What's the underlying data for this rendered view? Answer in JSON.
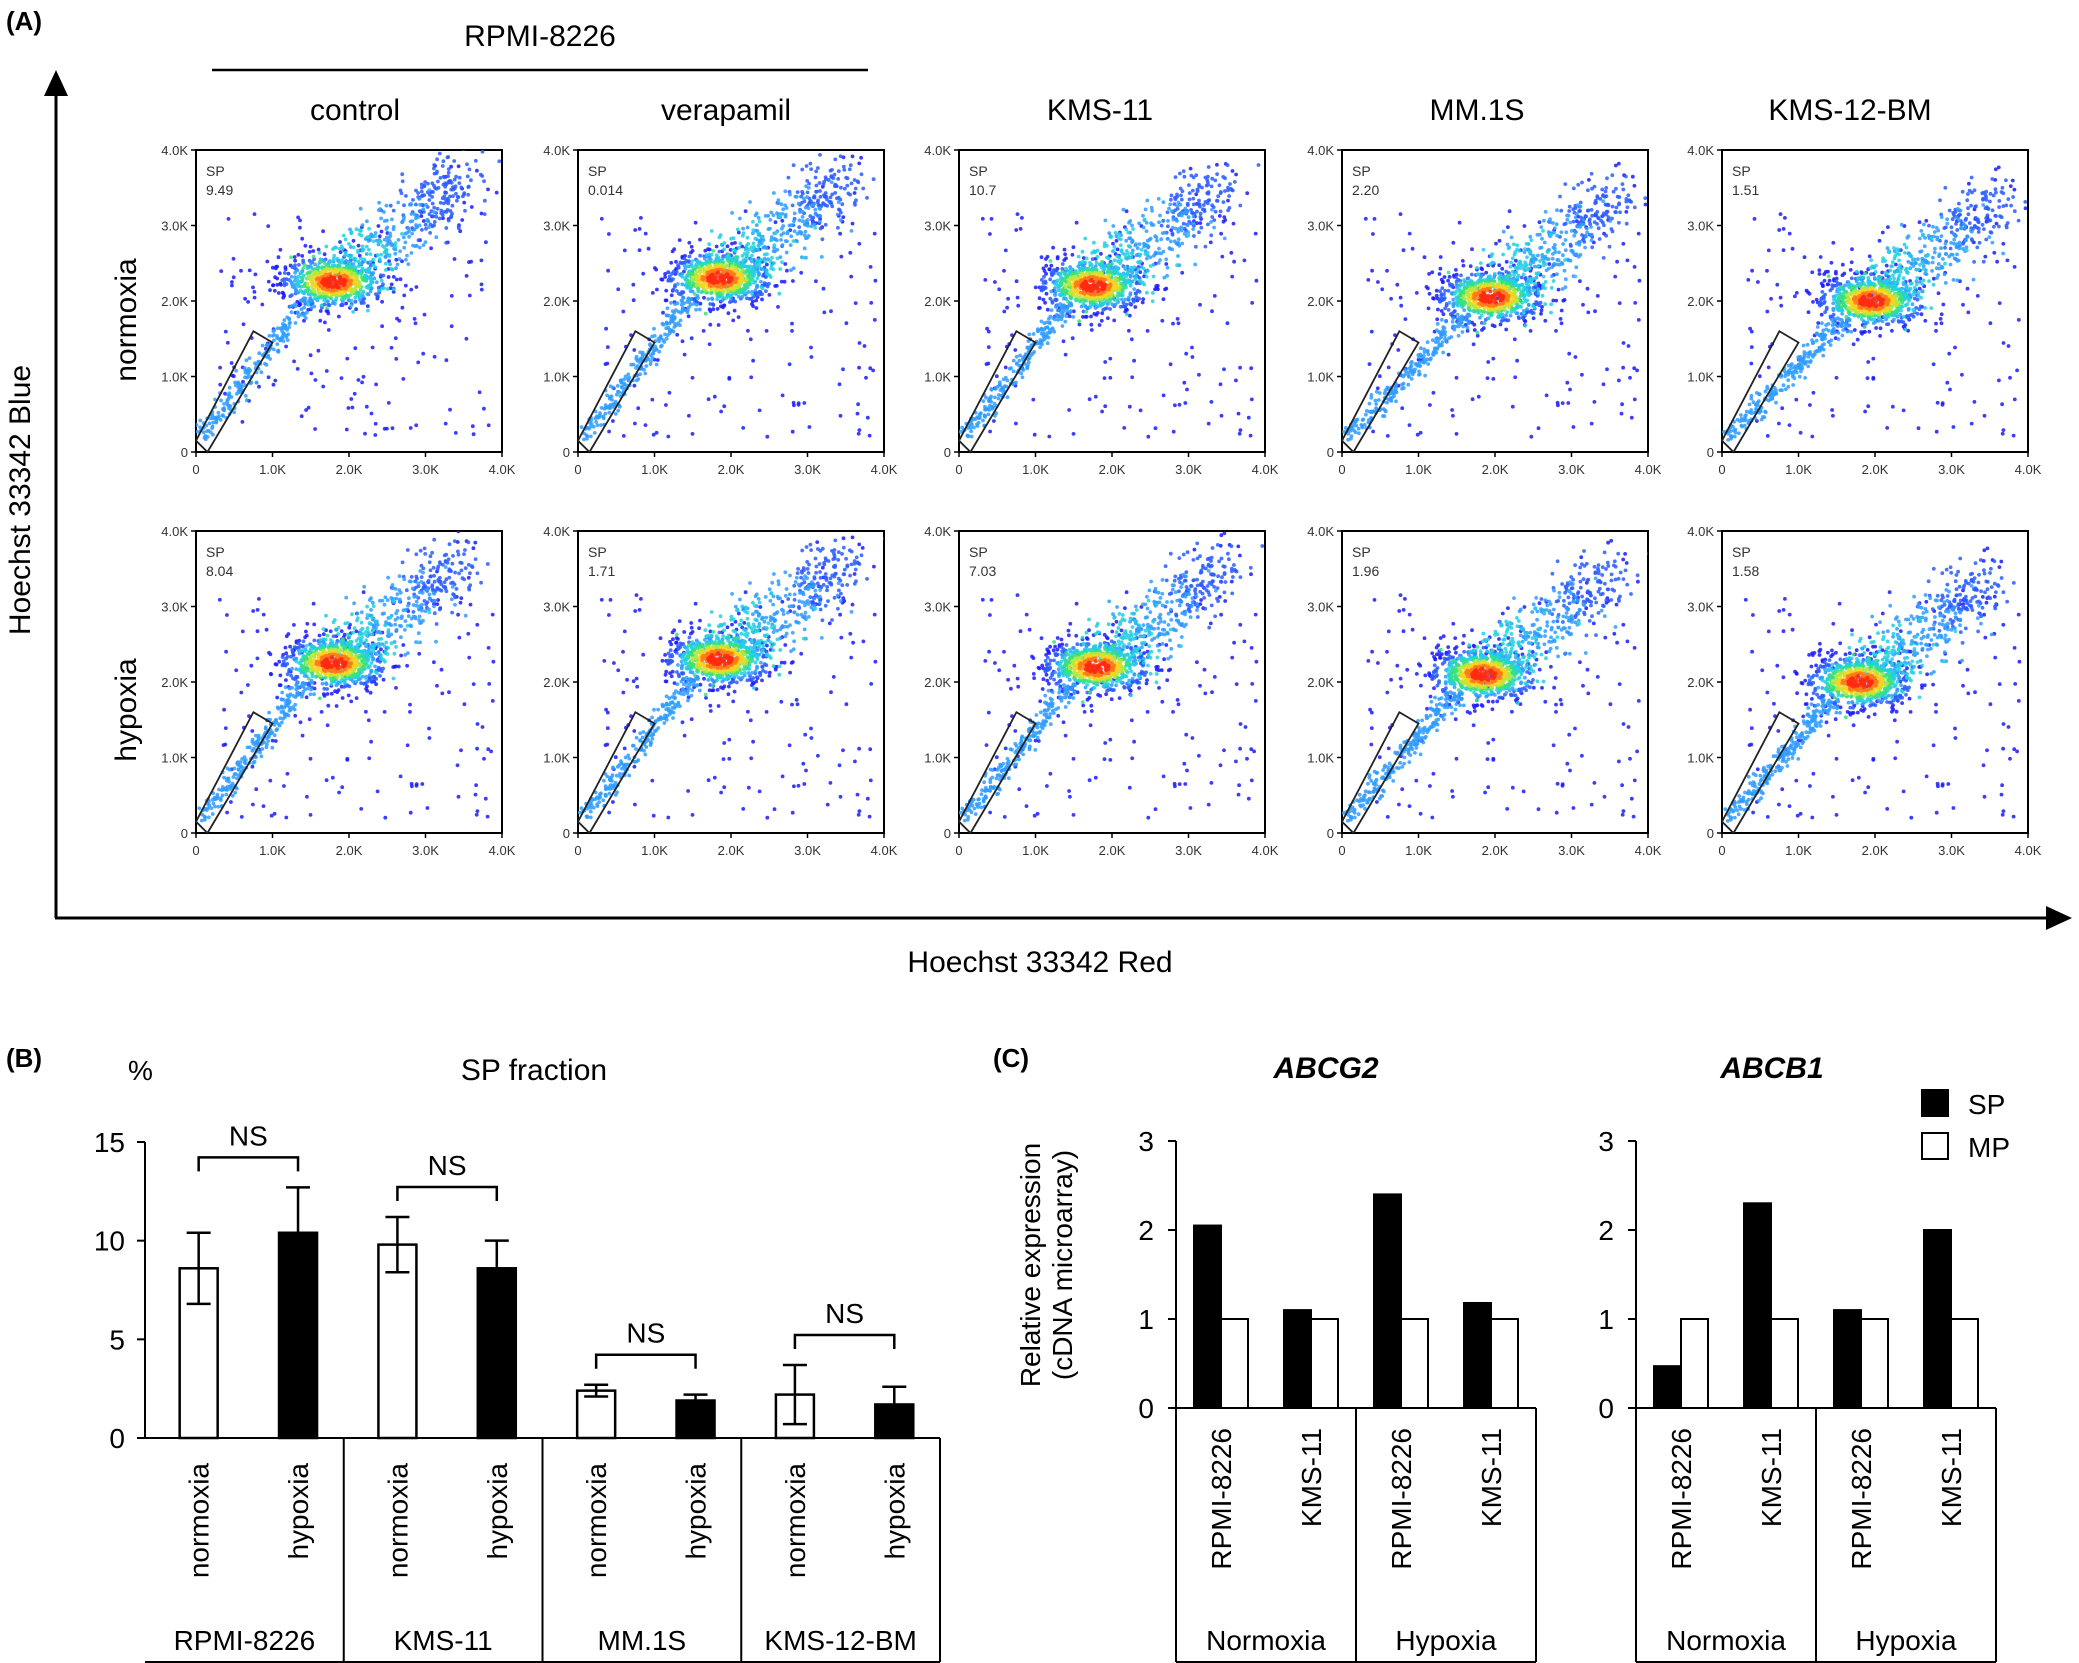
{
  "panel_a": {
    "tag": "(A)",
    "group_label": "RPMI-8226",
    "col_labels": [
      "control",
      "verapamil",
      "KMS-11",
      "MM.1S",
      "KMS-12-BM"
    ],
    "row_labels": [
      "normoxia",
      "hypoxia"
    ],
    "xlabel": "Hoechst 33342 Red",
    "ylabel": "Hoechst 33342 Blue",
    "tick_labels": [
      "0",
      "1.0K",
      "2.0K",
      "3.0K",
      "4.0K"
    ],
    "gate_label": "SP",
    "sp_values": [
      [
        "9.49",
        "0.014",
        "10.7",
        "2.20",
        "1.51"
      ],
      [
        "8.04",
        "1.71",
        "7.03",
        "1.96",
        "1.58"
      ]
    ]
  },
  "panel_b": {
    "tag": "(B)",
    "title": "SP fraction",
    "ylabel": "%",
    "yticks": [
      "0",
      "5",
      "10",
      "15"
    ],
    "ns_label": "NS",
    "group_labels": [
      "RPMI-8226",
      "KMS-11",
      "MM.1S",
      "KMS-12-BM"
    ],
    "condition_labels": [
      "normoxia",
      "hypoxia"
    ]
  },
  "panel_c": {
    "tag": "(C)",
    "ylabel_line1": "Relative expression",
    "ylabel_line2": "(cDNA microarray)",
    "yticks": [
      "0",
      "1",
      "2",
      "3"
    ],
    "titles": [
      "ABCG2",
      "ABCB1"
    ],
    "cell_labels": [
      "RPMI-8226",
      "KMS-11"
    ],
    "condition_labels": [
      "Normoxia",
      "Hypoxia"
    ],
    "legend": [
      "SP",
      "MP"
    ]
  },
  "chart_data": [
    {
      "type": "scatter",
      "title": "",
      "xlabel": "Hoechst 33342 Red",
      "ylabel": "Hoechst 33342 Blue",
      "xlim": [
        0,
        4000
      ],
      "ylim": [
        0,
        4000
      ],
      "columns": [
        "control",
        "verapamil",
        "KMS-11",
        "MM.1S",
        "KMS-12-BM"
      ],
      "rows": [
        "normoxia",
        "hypoxia"
      ],
      "gate": "SP",
      "sp_percent": [
        [
          9.49,
          0.014,
          10.7,
          2.2,
          1.51
        ],
        [
          8.04,
          1.71,
          7.03,
          1.96,
          1.58
        ]
      ],
      "density_peak": [
        [
          [
            1800,
            2250
          ],
          [
            1850,
            2300
          ],
          [
            1750,
            2200
          ],
          [
            1950,
            2050
          ],
          [
            1950,
            2000
          ]
        ],
        [
          [
            1800,
            2250
          ],
          [
            1850,
            2300
          ],
          [
            1800,
            2200
          ],
          [
            1850,
            2100
          ],
          [
            1800,
            2000
          ]
        ]
      ]
    },
    {
      "type": "bar",
      "title": "SP fraction",
      "ylabel": "%",
      "ylim": [
        0,
        15
      ],
      "categories": [
        "RPMI-8226",
        "KMS-11",
        "MM.1S",
        "KMS-12-BM"
      ],
      "series": [
        {
          "name": "normoxia",
          "values": [
            8.6,
            9.8,
            2.4,
            2.2
          ],
          "error": [
            1.8,
            1.4,
            0.3,
            1.5
          ]
        },
        {
          "name": "hypoxia",
          "values": [
            10.4,
            8.6,
            1.9,
            1.7
          ],
          "error": [
            2.3,
            1.4,
            0.3,
            0.9
          ]
        }
      ],
      "annotations": [
        "NS",
        "NS",
        "NS",
        "NS"
      ]
    },
    {
      "type": "bar",
      "title": "ABCG2",
      "ylabel": "Relative expression (cDNA microarray)",
      "ylim": [
        0,
        3
      ],
      "categories": [
        "Normoxia RPMI-8226",
        "Normoxia KMS-11",
        "Hypoxia RPMI-8226",
        "Hypoxia KMS-11"
      ],
      "series": [
        {
          "name": "SP",
          "values": [
            2.05,
            1.1,
            2.4,
            1.18
          ]
        },
        {
          "name": "MP",
          "values": [
            1,
            1,
            1,
            1
          ]
        }
      ]
    },
    {
      "type": "bar",
      "title": "ABCB1",
      "ylabel": "Relative expression (cDNA microarray)",
      "ylim": [
        0,
        3
      ],
      "categories": [
        "Normoxia RPMI-8226",
        "Normoxia KMS-11",
        "Hypoxia RPMI-8226",
        "Hypoxia KMS-11"
      ],
      "series": [
        {
          "name": "SP",
          "values": [
            0.47,
            2.3,
            1.1,
            2.0
          ]
        },
        {
          "name": "MP",
          "values": [
            1,
            1,
            1,
            1
          ]
        }
      ]
    }
  ]
}
